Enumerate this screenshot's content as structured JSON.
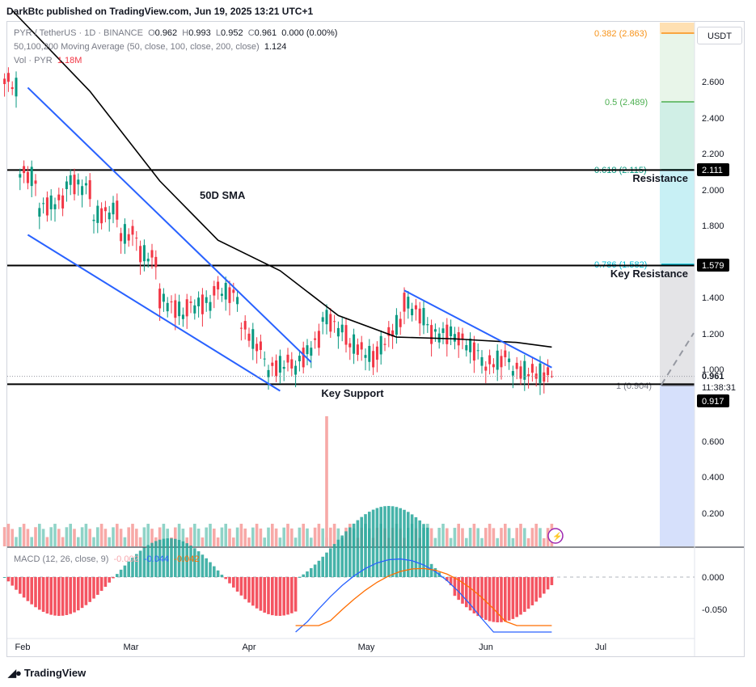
{
  "header": {
    "publisher_line": "DarkBtc published on TradingView.com, Jun 19, 2025 13:21 UTC+1"
  },
  "legend": {
    "symbol_line": {
      "pair": "PYR / TetherUS · 1D · BINANCE",
      "o_label": "O",
      "o": "0.962",
      "h_label": "H",
      "h": "0.993",
      "l_label": "L",
      "l": "0.952",
      "c_label": "C",
      "c": "0.961",
      "change": "0.000 (0.00%)"
    },
    "ma_line": {
      "label": "50,100,200 Moving Average (50, close, 100, close, 200, close)",
      "value": "1.124"
    },
    "vol_line": {
      "label": "Vol · PYR",
      "value": "1.18M"
    },
    "macd_line": {
      "label": "MACD (12, 26, close, 9)",
      "hist": "-0.002",
      "macd": "-0.044",
      "signal": "-0.042"
    }
  },
  "price_scale": {
    "currency_button": "USDT",
    "ticks": [
      "2.600",
      "2.400",
      "2.200",
      "2.000",
      "1.800",
      "1.400",
      "1.200",
      "1.000",
      "0.600",
      "0.400",
      "0.200"
    ],
    "macd_ticks": [
      "0.000",
      "-0.050"
    ],
    "badges": [
      {
        "label": "2.111",
        "kind": "resistance"
      },
      {
        "label": "1.579",
        "kind": "key-resistance"
      },
      {
        "label": "0.961",
        "kind": "last-price"
      },
      {
        "label": "11:38:31",
        "kind": "countdown"
      },
      {
        "label": "0.917",
        "kind": "key-support"
      }
    ]
  },
  "time_axis": {
    "labels": [
      "Feb",
      "Mar",
      "Apr",
      "May",
      "Jun",
      "Jul"
    ]
  },
  "annotations": {
    "sma_label": "50D SMA",
    "resistance": "Resistance",
    "key_resistance": "Key Resistance",
    "key_support": "Key Support"
  },
  "fib_levels": [
    {
      "label": "0.382 (2.863)",
      "color": "#f7931a"
    },
    {
      "label": "0.5 (2.489)",
      "color": "#4caf50"
    },
    {
      "label": "0.618 (2.115)",
      "color": "#089981"
    },
    {
      "label": "0.786 (1.582)",
      "color": "#00bcd4"
    },
    {
      "label": "1 (0.904)",
      "color": "#787b86"
    }
  ],
  "footer": {
    "brand": "TradingView"
  },
  "colors": {
    "up": "#089981",
    "down": "#f23645",
    "sma": "#000000",
    "trendline": "#2962ff",
    "macd": "#2962ff",
    "signal": "#ff6d00"
  },
  "chart_data": {
    "type": "candlestick",
    "title": "PYR / TetherUS · 1D · BINANCE",
    "x_range": [
      "2025-01-29",
      "2025-06-19"
    ],
    "ylim": [
      0.0,
      2.95
    ],
    "candles_ohlc_approx": [
      {
        "date": "2025-01-29",
        "o": 2.75,
        "h": 2.85,
        "l": 2.6,
        "c": 2.62
      },
      {
        "date": "2025-02-02",
        "o": 2.55,
        "h": 2.6,
        "l": 1.6,
        "c": 2.1
      },
      {
        "date": "2025-02-07",
        "o": 2.05,
        "h": 2.15,
        "l": 1.8,
        "c": 1.9
      },
      {
        "date": "2025-02-14",
        "o": 1.95,
        "h": 2.1,
        "l": 1.85,
        "c": 2.05
      },
      {
        "date": "2025-02-21",
        "o": 2.0,
        "h": 2.15,
        "l": 1.75,
        "c": 1.85
      },
      {
        "date": "2025-02-28",
        "o": 1.9,
        "h": 1.95,
        "l": 1.7,
        "c": 1.75
      },
      {
        "date": "2025-03-05",
        "o": 1.75,
        "h": 1.97,
        "l": 1.6,
        "c": 1.65
      },
      {
        "date": "2025-03-10",
        "o": 1.6,
        "h": 1.65,
        "l": 1.35,
        "c": 1.4
      },
      {
        "date": "2025-03-17",
        "o": 1.3,
        "h": 1.45,
        "l": 1.2,
        "c": 1.35
      },
      {
        "date": "2025-03-24",
        "o": 1.38,
        "h": 1.48,
        "l": 1.3,
        "c": 1.45
      },
      {
        "date": "2025-03-31",
        "o": 1.4,
        "h": 1.45,
        "l": 1.2,
        "c": 1.25
      },
      {
        "date": "2025-04-07",
        "o": 1.05,
        "h": 1.1,
        "l": 0.92,
        "c": 1.0
      },
      {
        "date": "2025-04-14",
        "o": 1.05,
        "h": 1.12,
        "l": 1.0,
        "c": 1.02
      },
      {
        "date": "2025-04-21",
        "o": 1.2,
        "h": 1.34,
        "l": 1.15,
        "c": 1.3
      },
      {
        "date": "2025-04-28",
        "o": 1.18,
        "h": 1.25,
        "l": 1.1,
        "c": 1.15
      },
      {
        "date": "2025-05-05",
        "o": 1.05,
        "h": 1.15,
        "l": 1.0,
        "c": 1.1
      },
      {
        "date": "2025-05-12",
        "o": 1.3,
        "h": 1.42,
        "l": 1.25,
        "c": 1.38
      },
      {
        "date": "2025-05-19",
        "o": 1.25,
        "h": 1.3,
        "l": 1.15,
        "c": 1.2
      },
      {
        "date": "2025-05-26",
        "o": 1.2,
        "h": 1.28,
        "l": 1.15,
        "c": 1.18
      },
      {
        "date": "2025-06-02",
        "o": 1.05,
        "h": 1.15,
        "l": 1.0,
        "c": 1.02
      },
      {
        "date": "2025-06-09",
        "o": 1.08,
        "h": 1.1,
        "l": 0.98,
        "c": 1.0
      },
      {
        "date": "2025-06-19",
        "o": 0.962,
        "h": 0.993,
        "l": 0.952,
        "c": 0.961
      }
    ],
    "sma50_approx": [
      {
        "date": "2025-01-31",
        "v": 3.0
      },
      {
        "date": "2025-02-20",
        "v": 2.55
      },
      {
        "date": "2025-03-10",
        "v": 2.05
      },
      {
        "date": "2025-03-25",
        "v": 1.72
      },
      {
        "date": "2025-04-10",
        "v": 1.55
      },
      {
        "date": "2025-04-25",
        "v": 1.3
      },
      {
        "date": "2025-05-10",
        "v": 1.18
      },
      {
        "date": "2025-05-25",
        "v": 1.17
      },
      {
        "date": "2025-06-10",
        "v": 1.15
      },
      {
        "date": "2025-06-19",
        "v": 1.124
      }
    ],
    "horizontal_levels": [
      {
        "label": "Resistance",
        "value": 2.111
      },
      {
        "label": "Key Resistance",
        "value": 1.579
      },
      {
        "label": "Key Support",
        "value": 0.917
      }
    ],
    "last_price": 0.961,
    "volume_last": "1.18M",
    "macd": {
      "hist": -0.002,
      "macd": -0.044,
      "signal": -0.042
    }
  }
}
